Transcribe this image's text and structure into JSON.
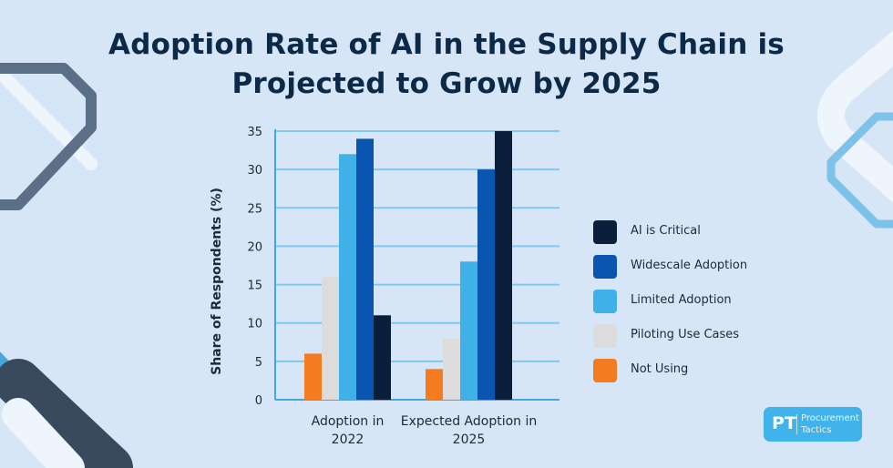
{
  "title_line1": "Adoption Rate of AI in the Supply Chain is",
  "title_line2": "Projected to Grow by 2025",
  "logo": {
    "mark": "PT",
    "line1": "Procurement",
    "line2": "Tactics"
  },
  "chart_data": {
    "type": "bar",
    "title": "Adoption Rate of AI in the Supply Chain is Projected to Grow by 2025",
    "xlabel": "",
    "ylabel": "Share of Respondents (%)",
    "ylim": [
      0,
      35
    ],
    "yticks": [
      0,
      5,
      10,
      15,
      20,
      25,
      30,
      35
    ],
    "grid": true,
    "legend_position": "right",
    "categories": [
      [
        "Adoption in",
        "2022"
      ],
      [
        "Expected Adoption in",
        "2025"
      ]
    ],
    "series": [
      {
        "name": "Not Using",
        "color": "#f47b20",
        "values": [
          6,
          4
        ]
      },
      {
        "name": "Piloting Use Cases",
        "color": "#dcdcdc",
        "values": [
          16,
          8
        ]
      },
      {
        "name": "Limited Adoption",
        "color": "#3fb1e8",
        "values": [
          32,
          18
        ]
      },
      {
        "name": "Widescale Adoption",
        "color": "#0a55b0",
        "values": [
          34,
          30
        ]
      },
      {
        "name": "AI is Critical",
        "color": "#0b1f3d",
        "values": [
          11,
          35
        ]
      }
    ],
    "legend_order": [
      "AI is Critical",
      "Widescale Adoption",
      "Limited Adoption",
      "Piloting Use Cases",
      "Not Using"
    ]
  }
}
